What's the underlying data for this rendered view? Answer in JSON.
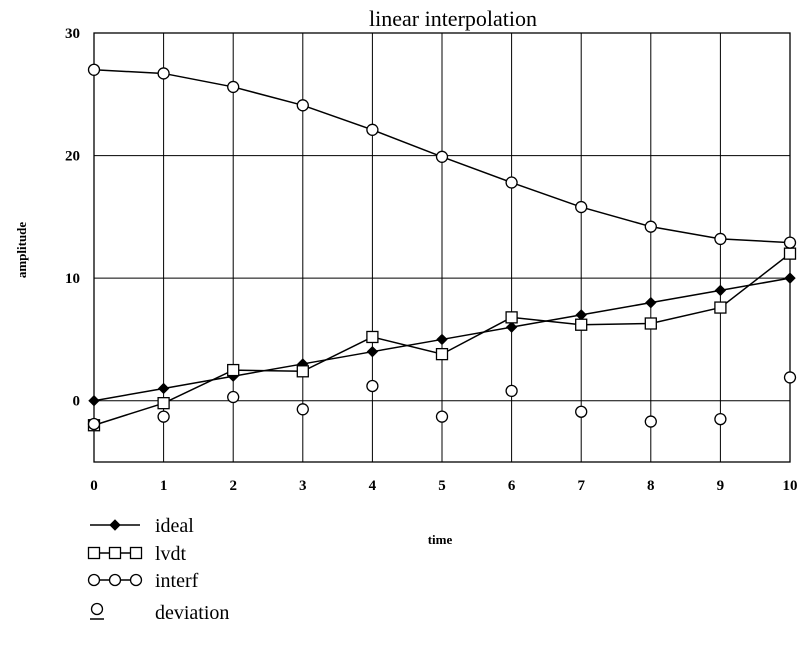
{
  "chart_data": {
    "type": "line",
    "title": "linear interpolation",
    "xlabel": "time",
    "ylabel": "amplitude",
    "xlim": [
      0,
      10
    ],
    "ylim": [
      -5,
      30
    ],
    "x_ticks": [
      0,
      1,
      2,
      3,
      4,
      5,
      6,
      7,
      8,
      9,
      10
    ],
    "y_ticks": [
      0,
      10,
      20,
      30
    ],
    "grid": true,
    "legend_position": "bottom-left",
    "x": [
      0,
      1,
      2,
      3,
      4,
      5,
      6,
      7,
      8,
      9,
      10
    ],
    "series": [
      {
        "name": "ideal",
        "marker": "diamond-filled",
        "line": true,
        "values": [
          0,
          1,
          2,
          3,
          4,
          5,
          6,
          7,
          8,
          9,
          10
        ]
      },
      {
        "name": "lvdt",
        "marker": "square-open",
        "line": true,
        "values": [
          -2,
          -0.2,
          2.5,
          2.4,
          5.2,
          3.8,
          6.8,
          6.2,
          6.3,
          7.6,
          12
        ]
      },
      {
        "name": "interf",
        "marker": "circle-open",
        "line": true,
        "values": [
          27,
          26.7,
          25.6,
          24.1,
          22.1,
          19.9,
          17.8,
          15.8,
          14.2,
          13.2,
          12.9
        ]
      },
      {
        "name": "deviation",
        "marker": "circle-open",
        "line": false,
        "values": [
          -1.9,
          -1.3,
          0.3,
          -0.7,
          1.2,
          -1.3,
          0.8,
          -0.9,
          -1.7,
          -1.5,
          1.9
        ]
      }
    ]
  }
}
